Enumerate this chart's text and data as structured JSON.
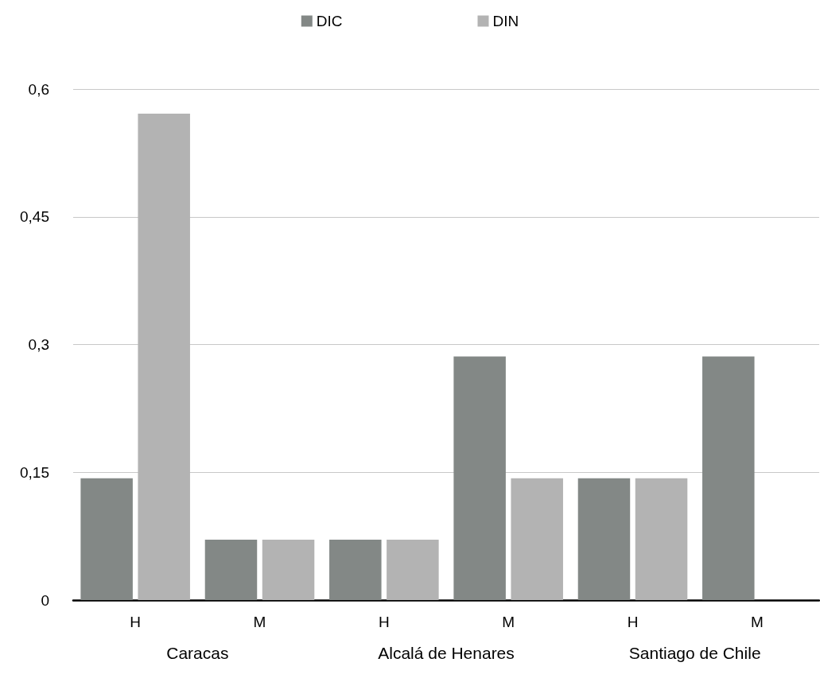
{
  "chart_data": {
    "type": "bar",
    "categories": [
      "H",
      "M",
      "H",
      "M",
      "H",
      "M"
    ],
    "series": [
      {
        "name": "DIC",
        "color": "#838886",
        "values": [
          0.143,
          0.071,
          0.071,
          0.286,
          0.143,
          0.286
        ]
      },
      {
        "name": "DIN",
        "color": "#b3b3b3",
        "values": [
          0.571,
          0.071,
          0.071,
          0.143,
          0.143,
          0
        ]
      }
    ],
    "ylim": [
      0,
      0.6
    ],
    "yticks": [
      0,
      {
        "value": 0.15,
        "label": "0,15"
      },
      {
        "value": 0.3,
        "label": "0,3"
      },
      {
        "value": 0.45,
        "label": "0,45"
      },
      {
        "value": 0.6,
        "label": "0,6"
      }
    ],
    "grid": "y",
    "legend": "top",
    "annotations": [
      "Caracas",
      "Alcalá de Henares",
      "Santiago de Chile"
    ]
  }
}
